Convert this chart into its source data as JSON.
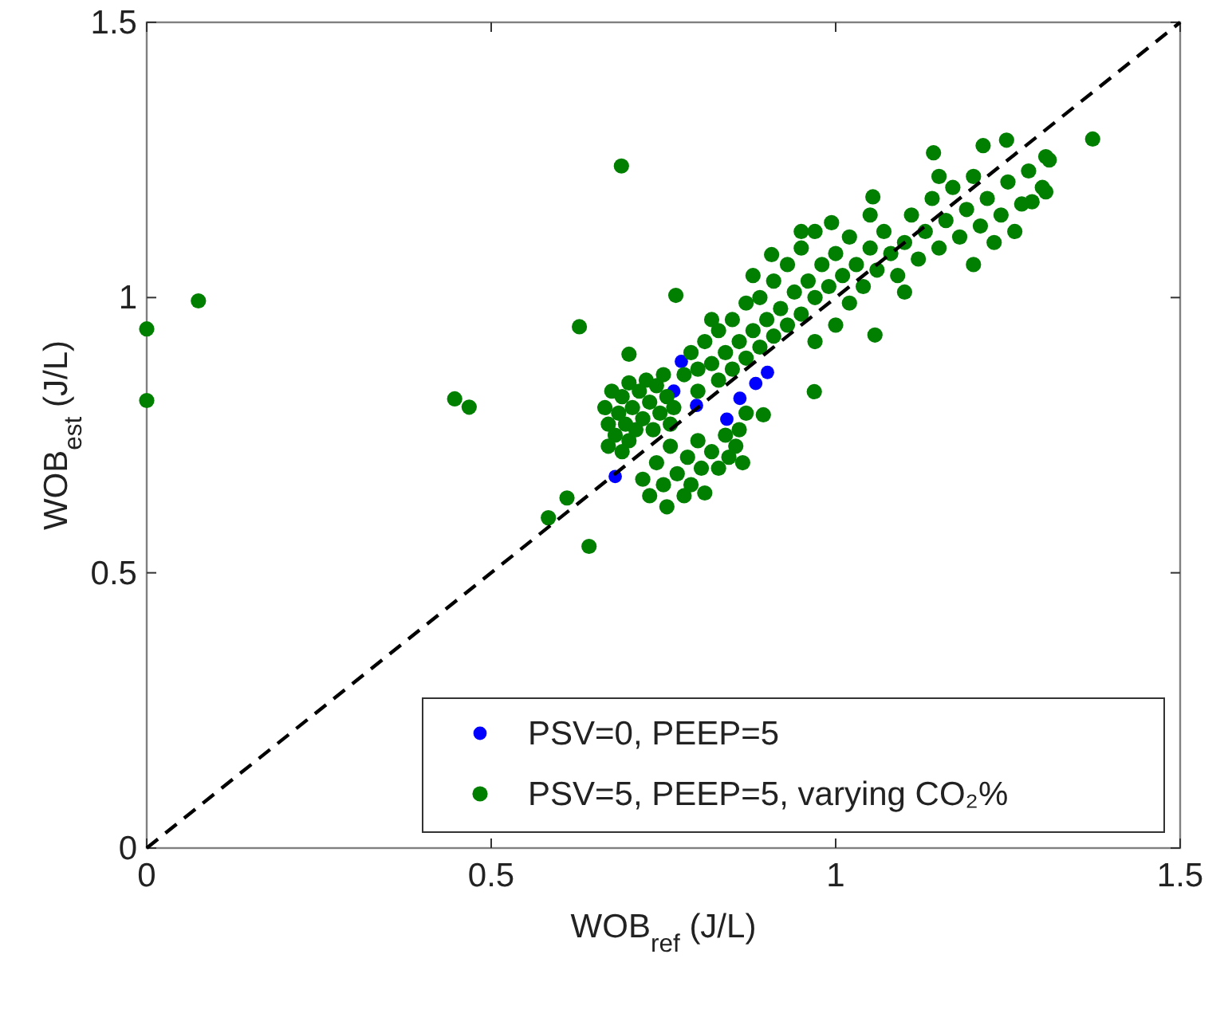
{
  "chart_data": {
    "type": "scatter",
    "xlabel": "WOB$_{ref}$ (J/L)",
    "ylabel": "WOB$_{est}$ (J/L)",
    "xlim": [
      0,
      1.5
    ],
    "ylim": [
      0,
      1.5
    ],
    "xticks": [
      0,
      0.5,
      1,
      1.5
    ],
    "yticks": [
      0,
      0.5,
      1,
      1.5
    ],
    "grid": false,
    "legend": "bottom right",
    "series": [
      {
        "name": "PSV=0, PEEP=5",
        "color": "#0000ff",
        "marker": "circle",
        "x": [
          0.68,
          0.776,
          0.765,
          0.842,
          0.861,
          0.884,
          0.798,
          0.901
        ],
        "values": [
          0.675,
          0.884,
          0.83,
          0.779,
          0.817,
          0.844,
          0.804,
          0.864
        ]
      },
      {
        "name": "PSV=5, PEEP=5, varying CO₂%",
        "color": "#007f00",
        "marker": "circle",
        "x": [
          0,
          0,
          0.075,
          0.447,
          0.468,
          0.628,
          0.689,
          0.768,
          0.7,
          0.583,
          0.61,
          0.642,
          1.373,
          0.969,
          1.057,
          0.895,
          0.994,
          0.907,
          1.054,
          1.142,
          1.214,
          1.248,
          1.305,
          1.305,
          1.285,
          0.665,
          0.67,
          0.675,
          0.68,
          0.685,
          0.69,
          0.695,
          0.7,
          0.7,
          0.705,
          0.71,
          0.715,
          0.72,
          0.725,
          0.73,
          0.735,
          0.74,
          0.745,
          0.75,
          0.755,
          0.76,
          0.765,
          0.67,
          0.69,
          0.72,
          0.73,
          0.74,
          0.75,
          0.755,
          0.76,
          0.77,
          0.78,
          0.785,
          0.79,
          0.8,
          0.805,
          0.81,
          0.82,
          0.83,
          0.84,
          0.845,
          0.855,
          0.86,
          0.87,
          0.865,
          0.78,
          0.79,
          0.8,
          0.8,
          0.81,
          0.82,
          0.83,
          0.83,
          0.84,
          0.85,
          0.85,
          0.86,
          0.87,
          0.87,
          0.88,
          0.89,
          0.89,
          0.9,
          0.91,
          0.91,
          0.92,
          0.93,
          0.93,
          0.94,
          0.95,
          0.95,
          0.96,
          0.97,
          0.97,
          0.98,
          0.99,
          1.0,
          1.01,
          1.02,
          1.02,
          1.03,
          1.04,
          1.05,
          1.06,
          1.07,
          1.08,
          1.09,
          1.1,
          1.11,
          1.12,
          1.13,
          1.14,
          1.15,
          1.16,
          1.17,
          1.18,
          1.19,
          1.2,
          1.21,
          1.22,
          1.23,
          1.24,
          1.25,
          1.26,
          1.27,
          1.28,
          1.3,
          1.31,
          1.15,
          1.05,
          0.95,
          0.88,
          0.82,
          1.0,
          1.1,
          1.2,
          0.97
        ],
        "values": [
          0.943,
          0.813,
          0.994,
          0.816,
          0.801,
          0.947,
          1.239,
          1.004,
          0.897,
          0.6,
          0.636,
          0.548,
          1.288,
          0.829,
          0.932,
          0.787,
          1.136,
          1.078,
          1.183,
          1.263,
          1.276,
          1.286,
          1.256,
          1.192,
          1.174,
          0.8,
          0.77,
          0.83,
          0.75,
          0.79,
          0.82,
          0.77,
          0.845,
          0.74,
          0.8,
          0.76,
          0.83,
          0.78,
          0.85,
          0.81,
          0.76,
          0.84,
          0.79,
          0.86,
          0.82,
          0.77,
          0.8,
          0.73,
          0.72,
          0.67,
          0.64,
          0.7,
          0.66,
          0.62,
          0.73,
          0.68,
          0.64,
          0.71,
          0.66,
          0.74,
          0.69,
          0.645,
          0.72,
          0.69,
          0.75,
          0.71,
          0.73,
          0.76,
          0.79,
          0.7,
          0.86,
          0.9,
          0.87,
          0.83,
          0.92,
          0.88,
          0.85,
          0.94,
          0.9,
          0.87,
          0.96,
          0.92,
          0.89,
          0.99,
          0.94,
          0.91,
          1.0,
          0.96,
          0.93,
          1.03,
          0.98,
          0.95,
          1.06,
          1.01,
          0.97,
          1.09,
          1.03,
          1.0,
          1.12,
          1.06,
          1.02,
          1.08,
          1.04,
          0.99,
          1.11,
          1.06,
          1.02,
          1.09,
          1.05,
          1.12,
          1.08,
          1.04,
          1.1,
          1.15,
          1.07,
          1.12,
          1.18,
          1.09,
          1.14,
          1.2,
          1.11,
          1.16,
          1.22,
          1.13,
          1.18,
          1.1,
          1.15,
          1.21,
          1.12,
          1.17,
          1.23,
          1.2,
          1.25,
          1.22,
          1.15,
          1.12,
          1.04,
          0.96,
          0.95,
          1.01,
          1.06,
          0.92
        ]
      },
      {
        "type": "line",
        "color": "#000000",
        "line_style": "dashed",
        "marker": "none",
        "x": [
          0,
          1.5
        ],
        "values": [
          0,
          1.5
        ]
      }
    ]
  }
}
